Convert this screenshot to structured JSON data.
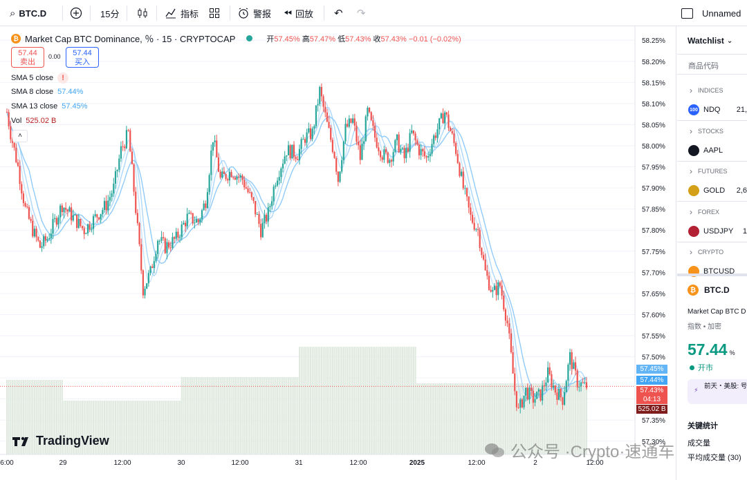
{
  "toolbar": {
    "symbol": "BTC.D",
    "interval": "15分",
    "indicators_label": "指标",
    "alert_label": "警报",
    "replay_label": "回放",
    "layout_name": "Unnamed"
  },
  "legend": {
    "title": "Market Cap BTC Dominance, ％ · 15 · CRYPTOCAP",
    "ohlc": {
      "open_label": "开",
      "open": "57.45%",
      "high_label": "高",
      "high": "57.47%",
      "low_label": "低",
      "low": "57.43%",
      "close_label": "收",
      "close": "57.43%",
      "change": "−0.01 (−0.02%)"
    },
    "sell_price": "57.44",
    "sell_label": "卖出",
    "spread": "0.00",
    "buy_price": "57.44",
    "buy_label": "买入",
    "sma5_label": "SMA 5 close",
    "sma5_value": "!",
    "sma8_label": "SMA 8 close",
    "sma8_value": "57.44%",
    "sma13_label": "SMA 13 close",
    "sma13_value": "57.45%",
    "vol_label": "Vol",
    "vol_value": "525.02 B"
  },
  "brand": "TradingView",
  "watermark": {
    "text": "公众号 ·Crypto·速通车"
  },
  "price_tags": {
    "sma13": "57.45%",
    "sma8": "57.44%",
    "last": "57.43%",
    "countdown": "04:13",
    "volume": "525.02 B"
  },
  "watchlist": {
    "title": "Watchlist",
    "search_placeholder": "商品代码",
    "sections": [
      {
        "name": "INDICES",
        "symbol": "NDQ",
        "icon_text": "100",
        "icon_color": "#2962ff",
        "value": "21,"
      },
      {
        "name": "STOCKS",
        "symbol": "AAPL",
        "icon_text": "",
        "icon_color": "#131722",
        "value": ""
      },
      {
        "name": "FUTURES",
        "symbol": "GOLD",
        "icon_text": "",
        "icon_color": "#d4a017",
        "value": "2,6"
      },
      {
        "name": "FOREX",
        "symbol": "USDJPY",
        "icon_text": "",
        "icon_color": "#b22234",
        "value": "1"
      },
      {
        "name": "CRYPTO",
        "symbol": "BTCUSD",
        "icon_text": "",
        "icon_color": "#f7931a",
        "value": ""
      }
    ]
  },
  "detail": {
    "symbol": "BTC.D",
    "name": "Market Cap BTC D",
    "tags": "指数 • 加密",
    "price": "57.44",
    "unit": "%",
    "status": "开市",
    "notice": "前天・美股: 号",
    "stats_title": "关键统计",
    "stat1": "成交量",
    "stat2": "平均成交量 (30)"
  },
  "colors": {
    "up": "#26a69a",
    "down": "#ef5350",
    "sma": "#90caf9",
    "vol": "#dfe9df",
    "accent": "#2962ff"
  },
  "chart_data": {
    "type": "candlestick",
    "title": "Market Cap BTC Dominance, ％ · 15 · CRYPTOCAP",
    "ylabel": "%",
    "ylim": [
      57.28,
      58.27
    ],
    "y_ticks": [
      "58.25%",
      "58.20%",
      "58.15%",
      "58.10%",
      "58.05%",
      "58.00%",
      "57.95%",
      "57.90%",
      "57.85%",
      "57.80%",
      "57.75%",
      "57.70%",
      "57.65%",
      "57.60%",
      "57.55%",
      "57.50%",
      "57.45%",
      "57.40%",
      "57.35%",
      "57.30%"
    ],
    "x_ticks": [
      "6:00",
      "29",
      "12:00",
      "30",
      "12:00",
      "31",
      "12:00",
      "2025",
      "12:00",
      "2",
      "12:00"
    ],
    "price_path": [
      [
        0,
        58.08
      ],
      [
        2,
        58.03
      ],
      [
        6,
        57.95
      ],
      [
        10,
        57.85
      ],
      [
        14,
        57.8
      ],
      [
        18,
        57.76
      ],
      [
        22,
        57.78
      ],
      [
        26,
        57.82
      ],
      [
        30,
        57.86
      ],
      [
        36,
        57.83
      ],
      [
        42,
        57.8
      ],
      [
        48,
        57.83
      ],
      [
        54,
        57.86
      ],
      [
        58,
        57.9
      ],
      [
        62,
        57.99
      ],
      [
        66,
        58.03
      ],
      [
        70,
        57.85
      ],
      [
        74,
        57.66
      ],
      [
        78,
        57.7
      ],
      [
        82,
        57.78
      ],
      [
        86,
        57.76
      ],
      [
        92,
        57.78
      ],
      [
        98,
        57.83
      ],
      [
        104,
        57.82
      ],
      [
        108,
        57.87
      ],
      [
        112,
        58.02
      ],
      [
        116,
        57.92
      ],
      [
        122,
        57.94
      ],
      [
        128,
        57.92
      ],
      [
        134,
        57.86
      ],
      [
        138,
        57.8
      ],
      [
        142,
        57.84
      ],
      [
        146,
        57.92
      ],
      [
        152,
        57.99
      ],
      [
        158,
        57.98
      ],
      [
        162,
        58.02
      ],
      [
        166,
        58.03
      ],
      [
        170,
        58.13
      ],
      [
        174,
        58.05
      ],
      [
        178,
        57.98
      ],
      [
        180,
        57.92
      ],
      [
        184,
        58.04
      ],
      [
        188,
        58.06
      ],
      [
        192,
        57.97
      ],
      [
        196,
        58.08
      ],
      [
        200,
        58.02
      ],
      [
        204,
        57.98
      ],
      [
        208,
        57.97
      ],
      [
        212,
        58.01
      ],
      [
        216,
        57.97
      ],
      [
        220,
        58.03
      ],
      [
        224,
        57.99
      ],
      [
        228,
        57.97
      ],
      [
        232,
        58.02
      ],
      [
        238,
        58.08
      ],
      [
        244,
        57.99
      ],
      [
        248,
        57.9
      ],
      [
        252,
        57.83
      ],
      [
        256,
        57.8
      ],
      [
        260,
        57.7
      ],
      [
        264,
        57.65
      ],
      [
        268,
        57.67
      ],
      [
        272,
        57.58
      ],
      [
        276,
        57.42
      ],
      [
        278,
        57.37
      ],
      [
        282,
        57.42
      ],
      [
        286,
        57.4
      ],
      [
        290,
        57.41
      ],
      [
        294,
        57.46
      ],
      [
        298,
        57.42
      ],
      [
        302,
        57.4
      ],
      [
        306,
        57.5
      ],
      [
        310,
        57.44
      ],
      [
        314,
        57.43
      ]
    ],
    "volume": {
      "unit": "B",
      "last": 525.02
    }
  }
}
